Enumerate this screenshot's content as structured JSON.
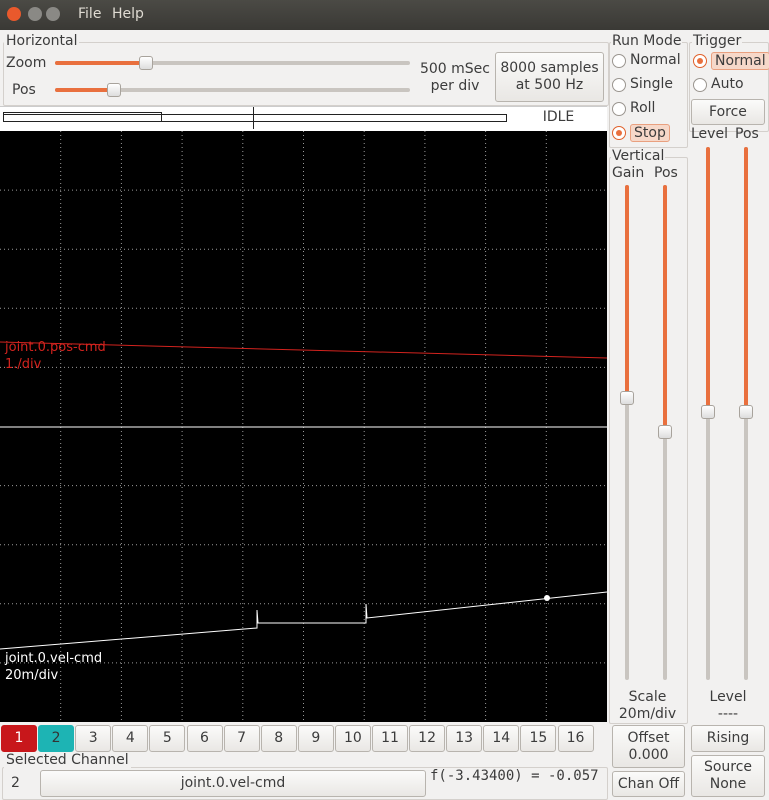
{
  "window": {
    "menu": [
      "File",
      "Help"
    ]
  },
  "horizontal": {
    "title": "Horizontal",
    "zoom_label": "Zoom",
    "pos_label": "Pos",
    "time_per_div": [
      "500 mSec",
      "per div"
    ],
    "samples_button": [
      "8000 samples",
      "at 500 Hz"
    ],
    "status": "IDLE"
  },
  "run_mode": {
    "title": "Run Mode",
    "options": [
      "Normal",
      "Single",
      "Roll",
      "Stop"
    ],
    "selected": 3
  },
  "trigger": {
    "title": "Trigger",
    "options": [
      "Normal",
      "Auto"
    ],
    "selected": 0,
    "force": "Force",
    "level_label": "Level",
    "pos_label": "Pos",
    "level_title": "Level",
    "level_value": "----",
    "edge_button": "Rising",
    "source_button": [
      "Source",
      "None"
    ]
  },
  "vertical": {
    "title": "Vertical",
    "gain_label": "Gain",
    "pos_label": "Pos",
    "scale_title": "Scale",
    "scale_value": "20m/div",
    "offset_button": [
      "Offset",
      "0.000"
    ],
    "chan_off": "Chan Off"
  },
  "scope": {
    "traces": [
      {
        "name": "joint.0.pos-cmd",
        "scale": "1./div",
        "color": "#d2231e"
      },
      {
        "name": "joint.0.vel-cmd",
        "scale": "20m/div",
        "color": "#ffffff"
      }
    ]
  },
  "channels": {
    "buttons": [
      "1",
      "2",
      "3",
      "4",
      "5",
      "6",
      "7",
      "8",
      "9",
      "10",
      "11",
      "12",
      "13",
      "14",
      "15",
      "16"
    ],
    "active_colors": [
      "#c8171b",
      "#1db4b4"
    ]
  },
  "selected_channel": {
    "title": "Selected Channel",
    "number": "2",
    "name": "joint.0.vel-cmd",
    "readout": "f(-3.43400) = -0.057"
  }
}
